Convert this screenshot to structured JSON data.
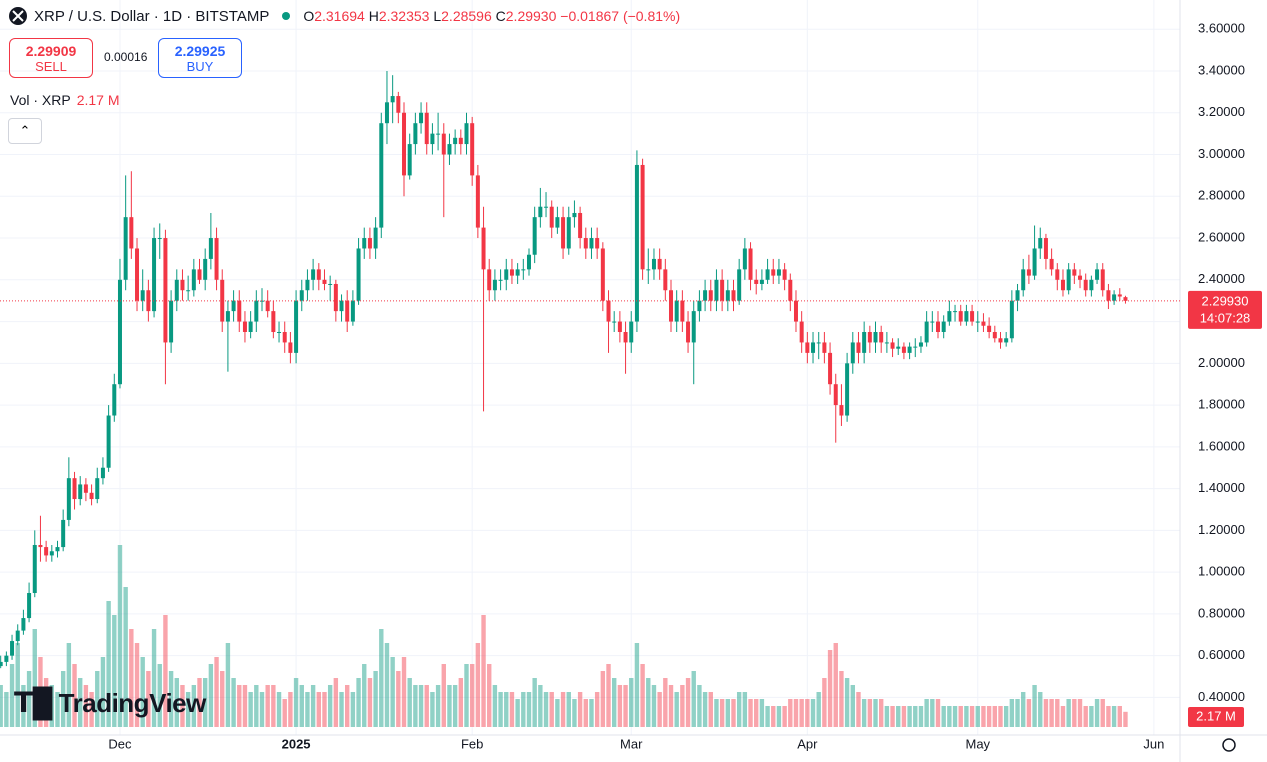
{
  "header": {
    "symbol": "XRP / U.S. Dollar · 1D · BITSTAMP",
    "ohlc": [
      {
        "label": "O",
        "value": "2.31694"
      },
      {
        "label": "H",
        "value": "2.32353"
      },
      {
        "label": "L",
        "value": "2.28596"
      },
      {
        "label": "C",
        "value": "2.29930"
      }
    ],
    "change": "−0.01867 (−0.81%)"
  },
  "trade": {
    "sell_price": "2.29909",
    "sell": "SELL",
    "spread": "0.00016",
    "buy_price": "2.29925",
    "buy": "BUY"
  },
  "volume_legend": "Vol · XRP",
  "logo": "TradingView",
  "chart_data": {
    "type": "candlestick",
    "open": [
      0.55,
      0.57,
      0.6,
      0.67,
      0.72,
      0.78,
      0.9,
      1.13,
      1.12,
      1.08,
      1.1,
      1.12,
      1.25,
      1.45,
      1.35,
      1.42,
      1.38,
      1.35,
      1.45,
      1.5,
      1.75,
      1.9,
      2.4,
      2.7,
      2.55,
      2.3,
      2.35,
      2.25,
      2.6,
      2.6,
      2.1,
      2.3,
      2.4,
      2.35,
      2.35,
      2.45,
      2.4,
      2.5,
      2.6,
      2.4,
      2.2,
      2.25,
      2.3,
      2.2,
      2.15,
      2.2,
      2.3,
      2.3,
      2.25,
      2.15,
      2.15,
      2.1,
      2.05,
      2.3,
      2.35,
      2.4,
      2.45,
      2.4,
      2.38,
      2.38,
      2.25,
      2.3,
      2.2,
      2.3,
      2.55,
      2.6,
      2.55,
      2.65,
      3.15,
      3.25,
      3.28,
      3.2,
      2.9,
      3.05,
      3.15,
      3.2,
      3.05,
      3.1,
      3.1,
      3.0,
      3.05,
      3.08,
      3.05,
      3.15,
      2.9,
      2.65,
      2.45,
      2.35,
      2.4,
      2.4,
      2.45,
      2.42,
      2.45,
      2.45,
      2.52,
      2.7,
      2.75,
      2.75,
      2.65,
      2.7,
      2.55,
      2.7,
      2.72,
      2.6,
      2.55,
      2.6,
      2.55,
      2.3,
      2.2,
      2.2,
      2.15,
      2.1,
      2.2,
      2.95,
      2.45,
      2.45,
      2.5,
      2.45,
      2.35,
      2.2,
      2.3,
      2.2,
      2.1,
      2.25,
      2.3,
      2.35,
      2.3,
      2.4,
      2.3,
      2.35,
      2.3,
      2.45,
      2.55,
      2.4,
      2.38,
      2.4,
      2.45,
      2.42,
      2.45,
      2.4,
      2.3,
      2.2,
      2.1,
      2.05,
      2.1,
      2.1,
      2.05,
      1.9,
      1.8,
      1.75,
      2.0,
      2.1,
      2.05,
      2.15,
      2.1,
      2.15,
      2.1,
      2.1,
      2.07,
      2.08,
      2.05,
      2.08,
      2.08,
      2.1,
      2.2,
      2.2,
      2.15,
      2.2,
      2.25,
      2.25,
      2.2,
      2.25,
      2.2,
      2.2,
      2.18,
      2.15,
      2.12,
      2.1,
      2.12,
      2.3,
      2.35,
      2.45,
      2.42,
      2.55,
      2.6,
      2.5,
      2.45,
      2.4,
      2.35,
      2.45,
      2.42,
      2.4,
      2.35,
      2.4,
      2.45,
      2.35,
      2.3,
      2.33,
      2.31694
    ],
    "high": [
      0.6,
      0.62,
      0.7,
      0.75,
      0.82,
      0.95,
      1.2,
      1.27,
      1.15,
      1.13,
      1.15,
      1.3,
      1.55,
      1.48,
      1.46,
      1.45,
      1.42,
      1.5,
      1.55,
      1.8,
      1.95,
      2.5,
      2.9,
      2.92,
      2.6,
      2.45,
      2.4,
      2.65,
      2.67,
      2.64,
      2.35,
      2.45,
      2.45,
      2.42,
      2.5,
      2.5,
      2.55,
      2.72,
      2.65,
      2.45,
      2.3,
      2.35,
      2.35,
      2.25,
      2.25,
      2.35,
      2.36,
      2.35,
      2.3,
      2.2,
      2.2,
      2.15,
      2.35,
      2.4,
      2.45,
      2.5,
      2.48,
      2.45,
      2.42,
      2.4,
      2.33,
      2.35,
      2.35,
      2.6,
      2.65,
      2.65,
      2.7,
      3.2,
      3.4,
      3.38,
      3.3,
      3.25,
      3.1,
      3.2,
      3.25,
      3.25,
      3.15,
      3.2,
      3.15,
      3.1,
      3.12,
      3.12,
      3.2,
      3.18,
      2.95,
      2.75,
      2.5,
      2.45,
      2.45,
      2.5,
      2.5,
      2.48,
      2.5,
      2.55,
      2.75,
      2.84,
      2.82,
      2.78,
      2.75,
      2.75,
      2.75,
      2.78,
      2.75,
      2.65,
      2.65,
      2.65,
      2.58,
      2.35,
      2.25,
      2.25,
      2.2,
      2.25,
      3.02,
      2.98,
      2.55,
      2.55,
      2.55,
      2.5,
      2.4,
      2.35,
      2.35,
      2.25,
      2.3,
      2.35,
      2.4,
      2.4,
      2.45,
      2.45,
      2.4,
      2.4,
      2.5,
      2.6,
      2.58,
      2.45,
      2.45,
      2.5,
      2.5,
      2.5,
      2.48,
      2.43,
      2.35,
      2.25,
      2.15,
      2.15,
      2.15,
      2.15,
      2.1,
      1.95,
      1.9,
      2.05,
      2.15,
      2.15,
      2.2,
      2.18,
      2.2,
      2.18,
      2.15,
      2.12,
      2.12,
      2.1,
      2.1,
      2.12,
      2.13,
      2.25,
      2.25,
      2.25,
      2.23,
      2.3,
      2.28,
      2.28,
      2.28,
      2.28,
      2.25,
      2.24,
      2.22,
      2.18,
      2.15,
      2.15,
      2.35,
      2.38,
      2.5,
      2.52,
      2.66,
      2.65,
      2.62,
      2.55,
      2.48,
      2.45,
      2.48,
      2.48,
      2.45,
      2.43,
      2.42,
      2.48,
      2.48,
      2.38,
      2.35,
      2.36,
      2.32353
    ],
    "low": [
      0.54,
      0.55,
      0.58,
      0.65,
      0.7,
      0.76,
      0.88,
      1.05,
      1.05,
      1.05,
      1.07,
      1.1,
      1.22,
      1.3,
      1.32,
      1.34,
      1.32,
      1.33,
      1.42,
      1.48,
      1.72,
      1.88,
      2.35,
      2.5,
      2.25,
      2.25,
      2.2,
      2.22,
      2.5,
      1.9,
      2.05,
      2.25,
      2.3,
      2.3,
      2.32,
      2.38,
      2.35,
      2.45,
      2.35,
      2.15,
      1.96,
      2.2,
      2.15,
      2.1,
      2.12,
      2.15,
      2.25,
      2.22,
      2.12,
      2.1,
      2.05,
      2.0,
      2.0,
      2.25,
      2.3,
      2.35,
      2.35,
      2.35,
      2.3,
      2.2,
      2.2,
      2.15,
      2.18,
      2.28,
      2.5,
      2.5,
      2.5,
      2.6,
      3.05,
      3.15,
      3.15,
      2.8,
      2.88,
      3.0,
      3.1,
      3.0,
      3.0,
      3.02,
      2.7,
      2.95,
      3.0,
      3.0,
      3.0,
      2.85,
      2.6,
      1.77,
      2.3,
      2.3,
      2.35,
      2.35,
      2.38,
      2.38,
      2.4,
      2.42,
      2.48,
      2.65,
      2.7,
      2.6,
      2.62,
      2.5,
      2.52,
      2.65,
      2.55,
      2.5,
      2.5,
      2.5,
      2.25,
      2.05,
      2.15,
      2.1,
      1.95,
      2.05,
      2.15,
      2.4,
      2.38,
      2.4,
      2.4,
      2.3,
      2.15,
      2.15,
      2.15,
      2.05,
      1.9,
      2.2,
      2.25,
      2.25,
      2.25,
      2.25,
      2.25,
      2.25,
      2.28,
      2.4,
      2.35,
      2.33,
      2.35,
      2.38,
      2.38,
      2.38,
      2.35,
      2.25,
      2.15,
      2.05,
      2.0,
      2.0,
      2.02,
      2.0,
      1.85,
      1.62,
      1.7,
      1.72,
      1.95,
      2.0,
      2.0,
      2.05,
      2.05,
      2.05,
      2.05,
      2.03,
      2.04,
      2.02,
      2.02,
      2.03,
      2.05,
      2.08,
      2.15,
      2.12,
      2.12,
      2.18,
      2.2,
      2.18,
      2.18,
      2.18,
      2.15,
      2.15,
      2.12,
      2.1,
      2.07,
      2.08,
      2.1,
      2.25,
      2.32,
      2.38,
      2.4,
      2.5,
      2.45,
      2.42,
      2.35,
      2.32,
      2.33,
      2.38,
      2.36,
      2.32,
      2.32,
      2.38,
      2.32,
      2.26,
      2.28,
      2.3,
      2.28596
    ],
    "close": [
      0.57,
      0.6,
      0.67,
      0.72,
      0.78,
      0.9,
      1.13,
      1.12,
      1.08,
      1.1,
      1.12,
      1.25,
      1.45,
      1.35,
      1.42,
      1.38,
      1.35,
      1.45,
      1.5,
      1.75,
      1.9,
      2.4,
      2.7,
      2.55,
      2.3,
      2.35,
      2.25,
      2.6,
      2.6,
      2.1,
      2.3,
      2.4,
      2.35,
      2.35,
      2.45,
      2.4,
      2.5,
      2.6,
      2.4,
      2.2,
      2.25,
      2.3,
      2.2,
      2.15,
      2.2,
      2.3,
      2.3,
      2.25,
      2.15,
      2.15,
      2.1,
      2.05,
      2.3,
      2.35,
      2.4,
      2.45,
      2.4,
      2.38,
      2.38,
      2.25,
      2.3,
      2.2,
      2.3,
      2.55,
      2.6,
      2.55,
      2.65,
      3.15,
      3.25,
      3.28,
      3.2,
      2.9,
      3.05,
      3.15,
      3.2,
      3.05,
      3.1,
      3.1,
      3.0,
      3.05,
      3.08,
      3.05,
      3.15,
      2.9,
      2.65,
      2.45,
      2.35,
      2.4,
      2.4,
      2.45,
      2.42,
      2.45,
      2.45,
      2.52,
      2.7,
      2.75,
      2.75,
      2.65,
      2.7,
      2.55,
      2.7,
      2.72,
      2.6,
      2.55,
      2.6,
      2.55,
      2.3,
      2.2,
      2.2,
      2.15,
      2.1,
      2.2,
      2.95,
      2.45,
      2.45,
      2.5,
      2.45,
      2.35,
      2.2,
      2.3,
      2.2,
      2.1,
      2.25,
      2.3,
      2.35,
      2.3,
      2.4,
      2.3,
      2.35,
      2.3,
      2.45,
      2.55,
      2.4,
      2.38,
      2.4,
      2.45,
      2.42,
      2.45,
      2.4,
      2.3,
      2.2,
      2.1,
      2.05,
      2.1,
      2.1,
      2.05,
      1.9,
      1.8,
      1.75,
      2.0,
      2.1,
      2.05,
      2.15,
      2.1,
      2.15,
      2.1,
      2.1,
      2.07,
      2.08,
      2.05,
      2.08,
      2.08,
      2.1,
      2.2,
      2.2,
      2.15,
      2.2,
      2.25,
      2.25,
      2.2,
      2.25,
      2.2,
      2.2,
      2.18,
      2.15,
      2.12,
      2.1,
      2.12,
      2.3,
      2.35,
      2.45,
      2.42,
      2.55,
      2.6,
      2.5,
      2.45,
      2.4,
      2.35,
      2.45,
      2.42,
      2.4,
      2.35,
      2.4,
      2.45,
      2.35,
      2.3,
      2.33,
      2.32,
      2.2993
    ],
    "volume": [
      6,
      5,
      9,
      12,
      6,
      8,
      14,
      10,
      7,
      6,
      5,
      8,
      12,
      9,
      7,
      6,
      5,
      8,
      10,
      18,
      16,
      26,
      20,
      14,
      12,
      10,
      8,
      14,
      9,
      16,
      8,
      7,
      6,
      5,
      6,
      7,
      7,
      9,
      10,
      8,
      12,
      7,
      6,
      6,
      5,
      6,
      5,
      6,
      6,
      5,
      4,
      5,
      7,
      6,
      5,
      6,
      5,
      5,
      6,
      7,
      5,
      6,
      5,
      7,
      9,
      7,
      8,
      14,
      12,
      10,
      8,
      10,
      7,
      6,
      6,
      6,
      5,
      6,
      9,
      6,
      6,
      7,
      9,
      9,
      12,
      16,
      9,
      6,
      5,
      5,
      5,
      4,
      5,
      5,
      7,
      6,
      5,
      5,
      4,
      5,
      5,
      4,
      5,
      4,
      4,
      5,
      8,
      9,
      7,
      6,
      6,
      7,
      12,
      9,
      7,
      6,
      5,
      7,
      6,
      5,
      6,
      7,
      8,
      6,
      5,
      5,
      4,
      4,
      4,
      4,
      5,
      5,
      4,
      4,
      4,
      3,
      3,
      3,
      3,
      4,
      4,
      4,
      4,
      4,
      5,
      7,
      11,
      12,
      8,
      7,
      6,
      5,
      4,
      4,
      4,
      4,
      3,
      3,
      3,
      3,
      3,
      3,
      3,
      4,
      4,
      4,
      3,
      3,
      3,
      3,
      3,
      3,
      3,
      3,
      3,
      3,
      3,
      3,
      4,
      4,
      5,
      4,
      6,
      5,
      4,
      4,
      4,
      3,
      4,
      4,
      4,
      3,
      3,
      4,
      4,
      3,
      3,
      3,
      2.17
    ],
    "last_volume_label": "2.17 M",
    "last_price_label": "2.29930",
    "countdown": "14:07:28",
    "up_color": "#089981",
    "down_color": "#f23645",
    "grid": true,
    "ylim": [
      0.22,
      3.74
    ],
    "yticks": [
      {
        "value": 0.4,
        "label": "0.40000"
      },
      {
        "value": 0.6,
        "label": "0.60000"
      },
      {
        "value": 0.8,
        "label": "0.80000"
      },
      {
        "value": 1.0,
        "label": "1.00000"
      },
      {
        "value": 1.2,
        "label": "1.20000"
      },
      {
        "value": 1.4,
        "label": "1.40000"
      },
      {
        "value": 1.6,
        "label": "1.60000"
      },
      {
        "value": 1.8,
        "label": "1.80000"
      },
      {
        "value": 2.0,
        "label": "2.00000"
      },
      {
        "value": 2.2,
        "label": "2.20000"
      },
      {
        "value": 2.4,
        "label": "2.40000"
      },
      {
        "value": 2.6,
        "label": "2.60000"
      },
      {
        "value": 2.8,
        "label": "2.80000"
      },
      {
        "value": 3.0,
        "label": "3.00000"
      },
      {
        "value": 3.2,
        "label": "3.20000"
      },
      {
        "value": 3.4,
        "label": "3.40000"
      },
      {
        "value": 3.6,
        "label": "3.60000"
      }
    ],
    "xlim": [
      -0.12,
      207.6
    ],
    "xticks": [
      {
        "value": 21,
        "label": "Dec"
      },
      {
        "value": 52,
        "label": "2025"
      },
      {
        "value": 83,
        "label": "Feb"
      },
      {
        "value": 111,
        "label": "Mar"
      },
      {
        "value": 142,
        "label": "Apr"
      },
      {
        "value": 172,
        "label": "May"
      },
      {
        "value": 203,
        "label": "Jun"
      }
    ]
  }
}
